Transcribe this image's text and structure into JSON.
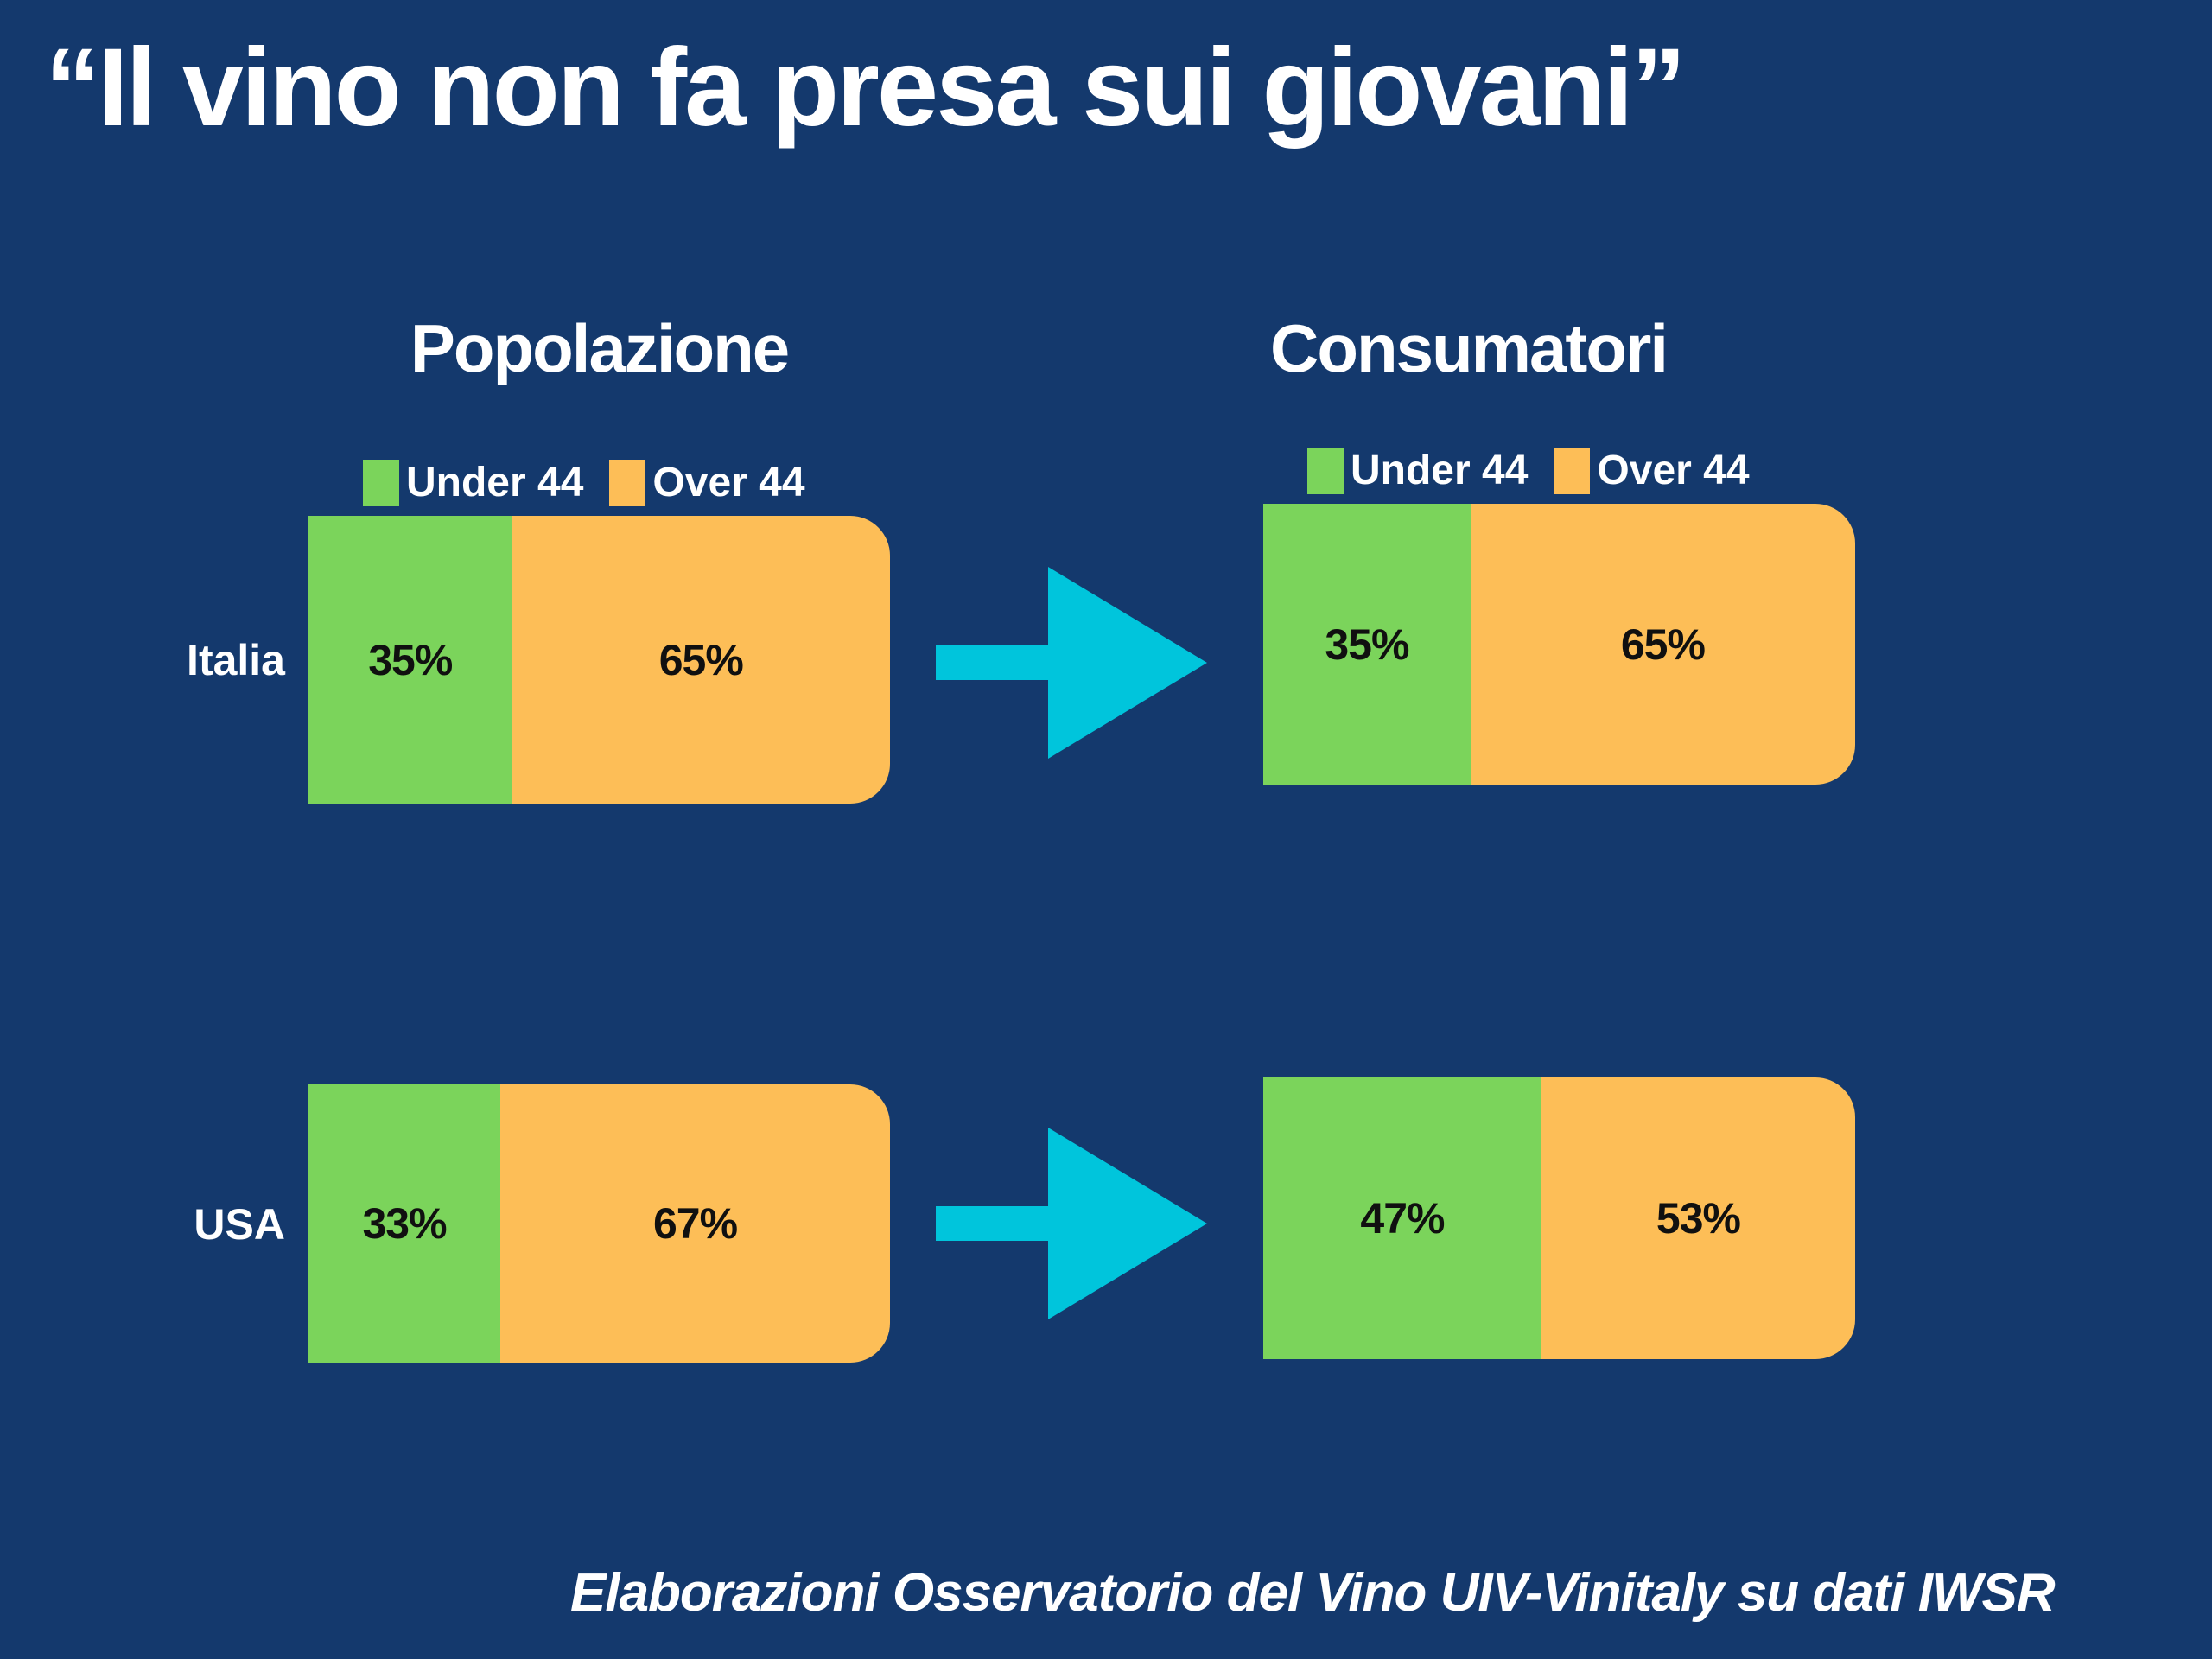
{
  "title": "“Il vino non fa presa sui giovani”",
  "columns": [
    {
      "label": "Popolazione"
    },
    {
      "label": "Consumatori"
    }
  ],
  "legend": {
    "under_label": "Under 44",
    "over_label": "Over 44"
  },
  "footer": "Elaborazioni Osservatorio del Vino UIV-Vinitaly su dati IWSR",
  "colors": {
    "background": "#14396D",
    "under44_green": "#7BD45B",
    "over44_orange": "#FDBE57",
    "arrow_cyan": "#00C5DC",
    "text_white": "#FFFFFF",
    "bar_value_text": "#101010"
  },
  "chart_data": {
    "type": "bar",
    "subtype": "horizontal-stacked-100percent",
    "title": "Il vino non fa presa sui giovani",
    "groups": [
      "Popolazione",
      "Consumatori"
    ],
    "series_labels": [
      "Under 44",
      "Over 44"
    ],
    "categories": [
      "Italia",
      "USA"
    ],
    "legend_position": "top",
    "grid": false,
    "values": {
      "popolazione": {
        "italia": {
          "under44": 35,
          "over44": 65
        },
        "usa": {
          "under44": 33,
          "over44": 67
        }
      },
      "consumatori": {
        "italia": {
          "under44": 35,
          "over44": 65
        },
        "usa": {
          "under44": 47,
          "over44": 53
        }
      }
    },
    "labels": {
      "popolazione": {
        "italia": {
          "under44": "35%",
          "over44": "65%"
        },
        "usa": {
          "under44": "33%",
          "over44": "67%"
        }
      },
      "consumatori": {
        "italia": {
          "under44": "35%",
          "over44": "65%"
        },
        "usa": {
          "under44": "47%",
          "over44": "53%"
        }
      }
    }
  }
}
